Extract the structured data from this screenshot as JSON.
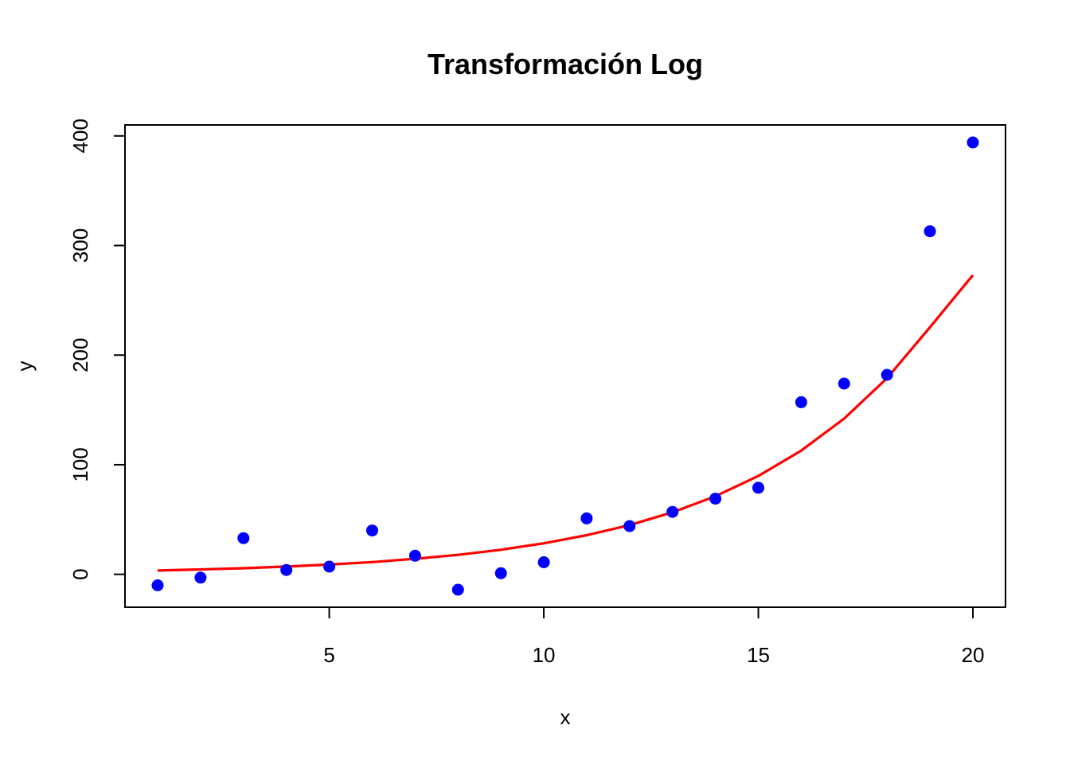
{
  "chart_data": {
    "type": "scatter",
    "title": "Transformación Log",
    "xlabel": "x",
    "ylabel": "y",
    "xlim": [
      0.24,
      20.76
    ],
    "ylim": [
      -30,
      410
    ],
    "xticks": [
      5,
      10,
      15,
      20
    ],
    "yticks": [
      0,
      100,
      200,
      300,
      400
    ],
    "grid": false,
    "points": {
      "color": "#0000ff",
      "x": [
        1,
        2,
        3,
        4,
        5,
        6,
        7,
        8,
        9,
        10,
        11,
        12,
        13,
        14,
        15,
        16,
        17,
        18,
        19,
        20
      ],
      "y": [
        -10,
        -3,
        33,
        4,
        7,
        40,
        17,
        -14,
        1,
        11,
        51,
        44,
        57,
        69,
        79,
        157,
        174,
        182,
        313,
        394
      ]
    },
    "fit_line": {
      "color": "#ff0000",
      "x": [
        1,
        2,
        3,
        4,
        5,
        6,
        7,
        8,
        9,
        10,
        11,
        12,
        13,
        14,
        15,
        16,
        17,
        18,
        19,
        20
      ],
      "y": [
        3.5,
        4.5,
        5.6,
        7.1,
        8.9,
        11.2,
        14.2,
        17.8,
        22.4,
        28.3,
        35.7,
        44.9,
        56.6,
        71.2,
        89.7,
        112.9,
        142.1,
        179.0,
        225.4,
        273.0
      ]
    }
  }
}
